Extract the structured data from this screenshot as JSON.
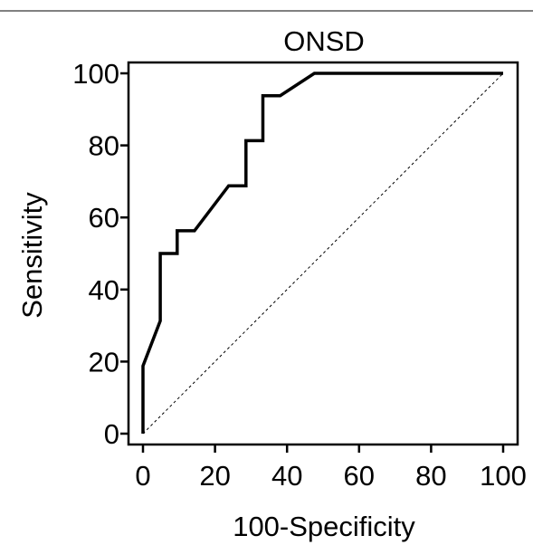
{
  "chart_data": {
    "type": "line",
    "title": "ONSD",
    "xlabel": "100-Specificity",
    "ylabel": "Sensitivity",
    "xlim": [
      0,
      100
    ],
    "ylim": [
      0,
      100
    ],
    "xticks": [
      0,
      20,
      40,
      60,
      80,
      100
    ],
    "yticks": [
      0,
      20,
      40,
      60,
      80,
      100
    ],
    "xtick_labels": [
      "0",
      "20",
      "40",
      "60",
      "80",
      "100"
    ],
    "ytick_labels": [
      "0",
      "20",
      "40",
      "60",
      "80",
      "100"
    ],
    "grid": false,
    "series": [
      {
        "style": "solid",
        "color": "#000000",
        "x": [
          0,
          0,
          4.8,
          4.8,
          9.5,
          9.5,
          14.3,
          23.8,
          28.6,
          28.6,
          33.3,
          33.3,
          38.1,
          47.6,
          100
        ],
        "y": [
          0,
          18.8,
          31.3,
          50,
          50,
          56.3,
          56.3,
          68.8,
          68.8,
          81.3,
          81.3,
          93.8,
          93.8,
          100,
          100
        ]
      },
      {
        "style": "dashed",
        "color": "#000000",
        "x": [
          0,
          100
        ],
        "y": [
          0,
          100
        ]
      }
    ]
  }
}
